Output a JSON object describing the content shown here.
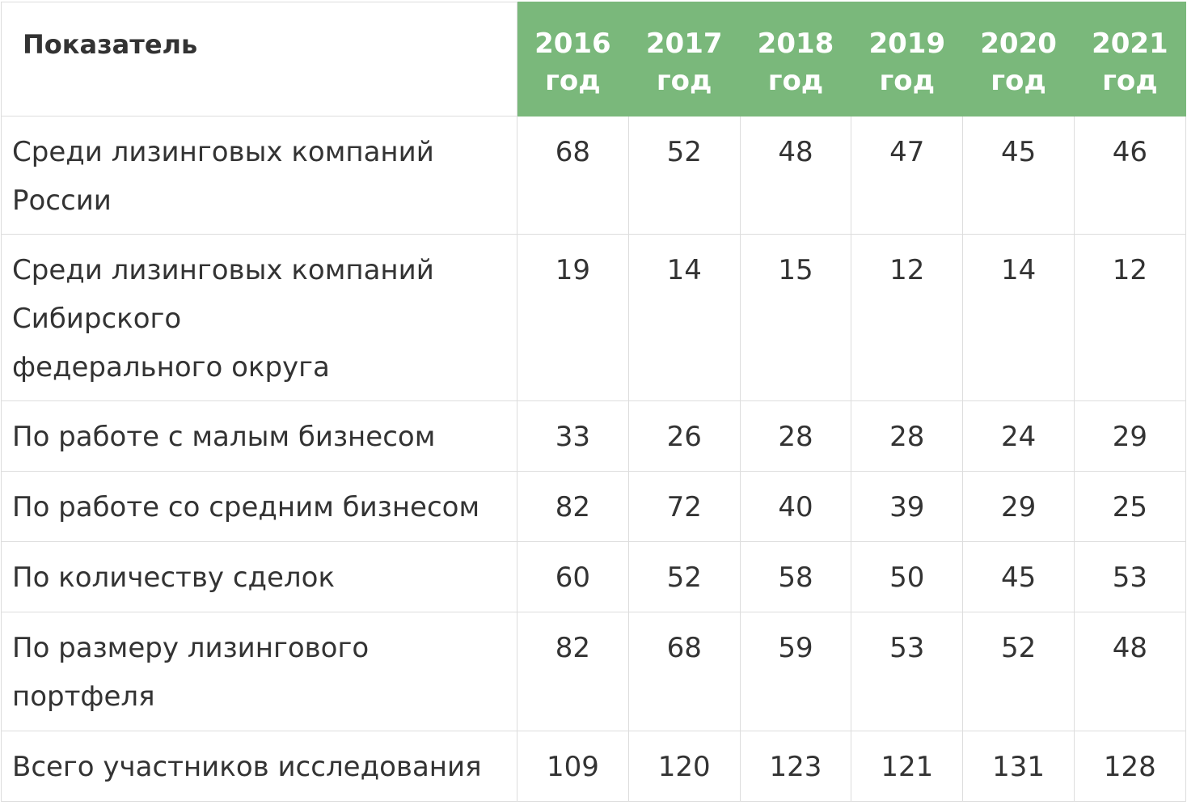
{
  "table": {
    "header_label": "Показатель",
    "header_color": "#7ab87b",
    "years": [
      {
        "year": "2016",
        "suffix": "год"
      },
      {
        "year": "2017",
        "suffix": "год"
      },
      {
        "year": "2018",
        "suffix": "год"
      },
      {
        "year": "2019",
        "suffix": "год"
      },
      {
        "year": "2020",
        "suffix": "год"
      },
      {
        "year": "2021",
        "suffix": "год"
      }
    ],
    "rows": [
      {
        "label_lines": [
          "Среди лизинговых компаний",
          "России"
        ],
        "values": [
          "68",
          "52",
          "48",
          "47",
          "45",
          "46"
        ]
      },
      {
        "label_lines": [
          "Среди лизинговых компаний",
          "Сибирского",
          "федерального округа"
        ],
        "values": [
          "19",
          "14",
          "15",
          "12",
          "14",
          "12"
        ]
      },
      {
        "label_lines": [
          "По работе с малым бизнесом"
        ],
        "values": [
          "33",
          "26",
          "28",
          "28",
          "24",
          "29"
        ]
      },
      {
        "label_lines": [
          "По работе со средним бизнесом"
        ],
        "values": [
          "82",
          "72",
          "40",
          "39",
          "29",
          "25"
        ]
      },
      {
        "label_lines": [
          "По количеству сделок"
        ],
        "values": [
          "60",
          "52",
          "58",
          "50",
          "45",
          "53"
        ]
      },
      {
        "label_lines": [
          "По размеру лизингового",
          "портфеля"
        ],
        "values": [
          "82",
          "68",
          "59",
          "53",
          "52",
          "48"
        ]
      },
      {
        "label_lines": [
          "Всего участников исследования"
        ],
        "values": [
          "109",
          "120",
          "123",
          "121",
          "131",
          "128"
        ]
      }
    ]
  }
}
